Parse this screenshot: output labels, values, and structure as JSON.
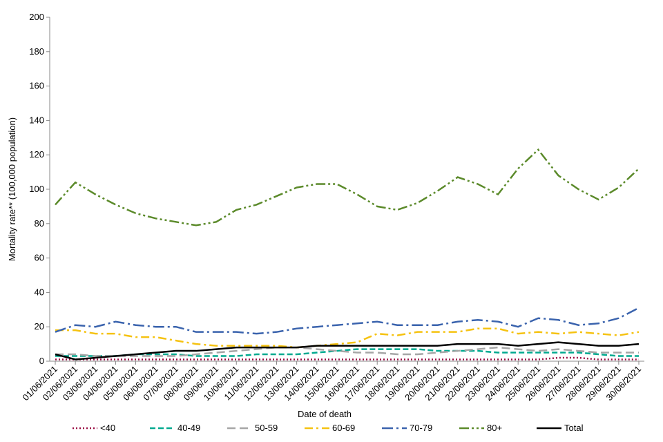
{
  "chart_data": {
    "type": "line",
    "xlabel": "Date of death",
    "ylabel": "Mortality rate** (100,000 population)",
    "categories": [
      "01/06/2021",
      "02/06/2021",
      "03/06/2021",
      "04/06/2021",
      "05/06/2021",
      "06/06/2021",
      "07/06/2021",
      "08/06/2021",
      "09/06/2021",
      "10/06/2021",
      "11/06/2021",
      "12/06/2021",
      "13/06/2021",
      "14/06/2021",
      "15/06/2021",
      "16/06/2021",
      "17/06/2021",
      "18/06/2021",
      "19/06/2021",
      "20/06/2021",
      "21/06/2021",
      "22/06/2021",
      "23/06/2021",
      "24/06/2021",
      "25/06/2021",
      "26/06/2021",
      "27/06/2021",
      "28/06/2021",
      "29/06/2021",
      "30/06/2021"
    ],
    "ylim": [
      0,
      200
    ],
    "yticks": [
      0,
      20,
      40,
      60,
      80,
      100,
      120,
      140,
      160,
      180,
      200
    ],
    "legend": "bottom",
    "series": [
      {
        "name": "<40",
        "color": "#9b0d45",
        "dash": "2 3",
        "values": [
          1,
          1,
          1,
          1,
          1,
          1,
          1,
          1,
          1,
          1,
          1,
          1,
          1,
          1,
          1,
          1,
          1,
          1,
          1,
          1,
          1,
          1,
          1,
          1,
          1,
          2,
          2,
          1,
          1,
          1
        ]
      },
      {
        "name": "40-49",
        "color": "#00a98f",
        "dash": "8 4",
        "values": [
          3,
          3,
          3,
          3,
          4,
          4,
          4,
          3,
          3,
          3,
          4,
          4,
          4,
          5,
          6,
          7,
          7,
          7,
          7,
          6,
          6,
          6,
          5,
          5,
          5,
          5,
          5,
          4,
          3,
          3
        ]
      },
      {
        "name": "50-59",
        "color": "#a6a6a6",
        "dash": "12 6",
        "values": [
          4,
          4,
          3,
          3,
          3,
          3,
          3,
          4,
          5,
          6,
          7,
          8,
          8,
          7,
          6,
          5,
          5,
          4,
          4,
          5,
          6,
          7,
          8,
          7,
          6,
          7,
          6,
          5,
          5,
          5
        ]
      },
      {
        "name": "60-69",
        "color": "#f5c211",
        "dash": "12 5 3 5",
        "values": [
          18,
          18,
          16,
          16,
          14,
          14,
          12,
          10,
          9,
          9,
          9,
          9,
          8,
          9,
          10,
          11,
          16,
          15,
          17,
          17,
          17,
          19,
          19,
          16,
          17,
          16,
          17,
          16,
          15,
          17
        ]
      },
      {
        "name": "70-79",
        "color": "#3a63ad",
        "dash": "16 5 3 5",
        "values": [
          17,
          21,
          20,
          23,
          21,
          20,
          20,
          17,
          17,
          17,
          16,
          17,
          19,
          20,
          21,
          22,
          23,
          21,
          21,
          21,
          23,
          24,
          23,
          20,
          25,
          24,
          21,
          22,
          25,
          31
        ]
      },
      {
        "name": "80+",
        "color": "#5b8a2a",
        "dash": "14 4 3 4 3 4",
        "values": [
          91,
          104,
          97,
          91,
          86,
          83,
          81,
          79,
          81,
          88,
          91,
          96,
          101,
          103,
          103,
          97,
          90,
          88,
          92,
          99,
          107,
          103,
          97,
          112,
          123,
          108,
          100,
          94,
          101,
          112
        ]
      },
      {
        "name": "Total",
        "color": "#000000",
        "dash": "",
        "values": [
          4,
          1,
          2,
          3,
          4,
          5,
          6,
          6,
          7,
          8,
          8,
          8,
          8,
          9,
          9,
          9,
          9,
          9,
          9,
          9,
          10,
          10,
          10,
          9,
          10,
          11,
          10,
          9,
          9,
          10
        ]
      }
    ]
  }
}
